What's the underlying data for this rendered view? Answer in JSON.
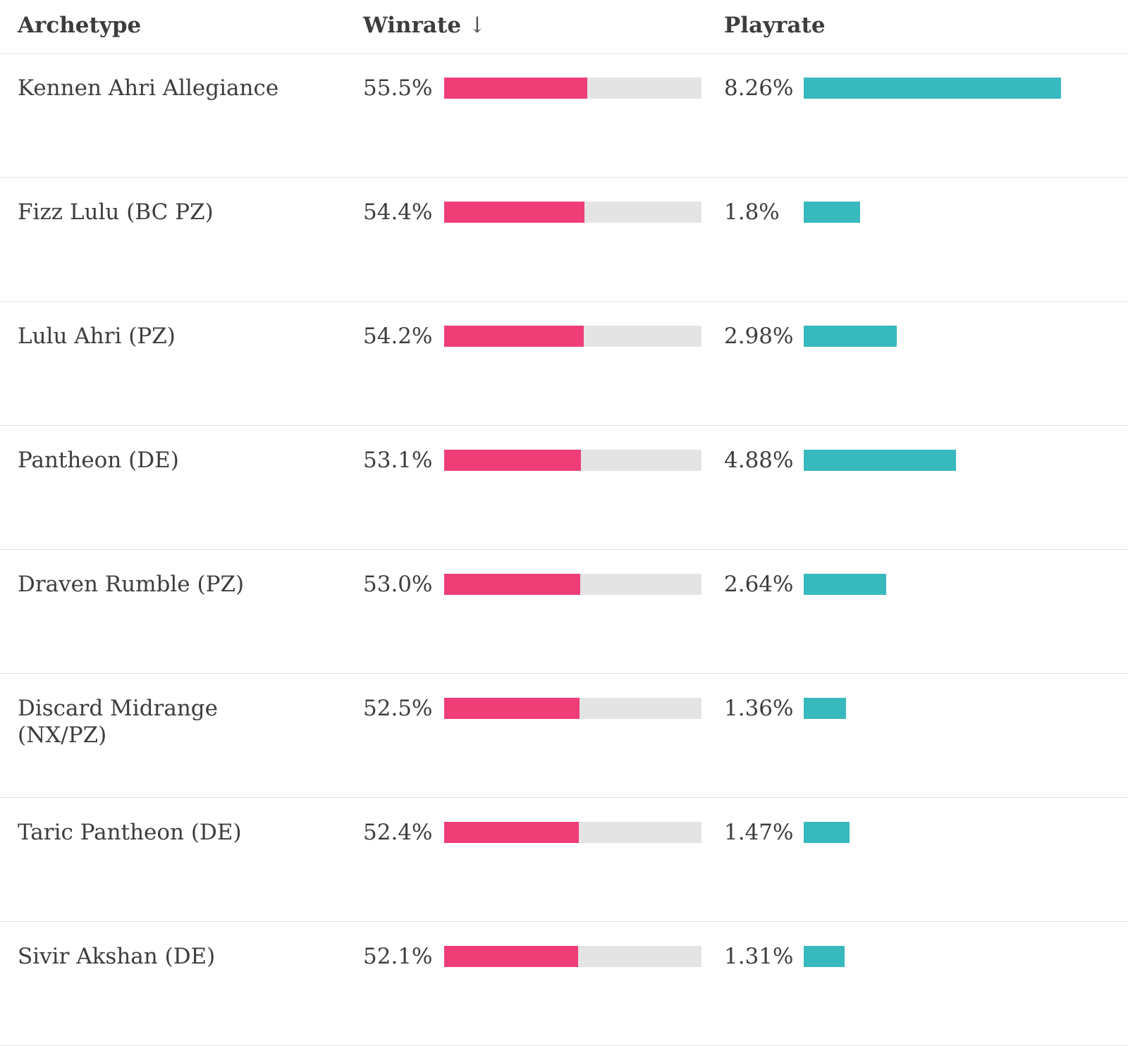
{
  "header": {
    "archetype": "Archetype",
    "winrate": "Winrate",
    "sort_icon": "↓",
    "playrate": "Playrate"
  },
  "colors": {
    "winrate_fill": "#ee3d77",
    "winrate_track": "#e4e4e4",
    "playrate_fill": "#38b9be",
    "text": "#3d3d3d",
    "separator": "#e3e3e3"
  },
  "chart_data": {
    "type": "table",
    "columns": [
      "Archetype",
      "Winrate",
      "Playrate"
    ],
    "sorted_by": "Winrate descending",
    "winrate_axis_max": 100,
    "playrate_scale_max": 8.26,
    "rows": [
      {
        "archetype": "Kennen Ahri Allegiance",
        "winrate": 55.5,
        "winrate_label": "55.5%",
        "playrate": 8.26,
        "playrate_label": "8.26%"
      },
      {
        "archetype": "Fizz Lulu (BC PZ)",
        "winrate": 54.4,
        "winrate_label": "54.4%",
        "playrate": 1.8,
        "playrate_label": "1.8%"
      },
      {
        "archetype": "Lulu Ahri (PZ)",
        "winrate": 54.2,
        "winrate_label": "54.2%",
        "playrate": 2.98,
        "playrate_label": "2.98%"
      },
      {
        "archetype": "Pantheon (DE)",
        "winrate": 53.1,
        "winrate_label": "53.1%",
        "playrate": 4.88,
        "playrate_label": "4.88%"
      },
      {
        "archetype": "Draven Rumble (PZ)",
        "winrate": 53.0,
        "winrate_label": "53.0%",
        "playrate": 2.64,
        "playrate_label": "2.64%"
      },
      {
        "archetype": "Discard Midrange (NX/PZ)",
        "winrate": 52.5,
        "winrate_label": "52.5%",
        "playrate": 1.36,
        "playrate_label": "1.36%"
      },
      {
        "archetype": "Taric Pantheon (DE)",
        "winrate": 52.4,
        "winrate_label": "52.4%",
        "playrate": 1.47,
        "playrate_label": "1.47%"
      },
      {
        "archetype": "Sivir Akshan (DE)",
        "winrate": 52.1,
        "winrate_label": "52.1%",
        "playrate": 1.31,
        "playrate_label": "1.31%"
      }
    ]
  }
}
